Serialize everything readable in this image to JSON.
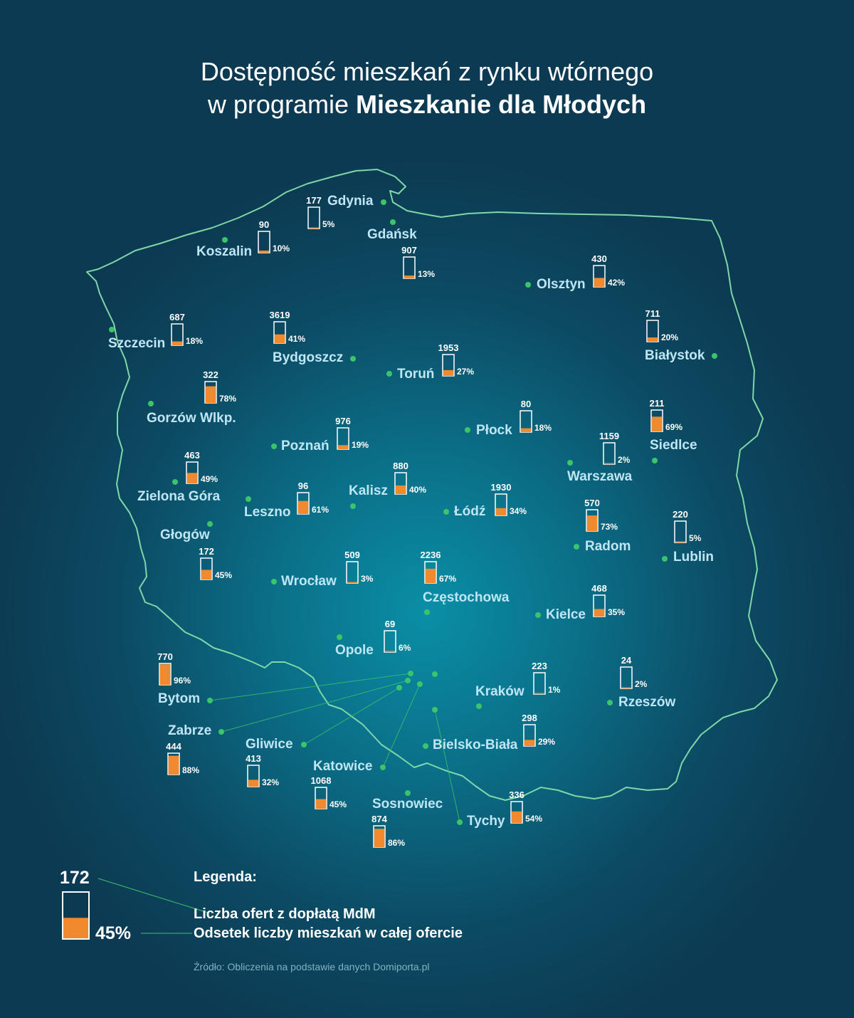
{
  "title": {
    "line1": "Dostępność mieszkań z rynku wtórnego",
    "line2_prefix": "w programie ",
    "line2_bold": "Mieszkanie dla Młodych"
  },
  "colors": {
    "orange": "#f08a2e",
    "dot": "#3cc46a",
    "border": "#7fd7a8",
    "label": "#bfe6f5"
  },
  "cities": [
    {
      "id": "gdynia",
      "name": "Gdynia",
      "count": "177",
      "pct": "5%",
      "share": 0.05
    },
    {
      "id": "gdansk",
      "name": "Gdańsk",
      "count": "907",
      "pct": "13%",
      "share": 0.13
    },
    {
      "id": "koszalin",
      "name": "Koszalin",
      "count": "90",
      "pct": "10%",
      "share": 0.1
    },
    {
      "id": "olsztyn",
      "name": "Olsztyn",
      "count": "430",
      "pct": "42%",
      "share": 0.42
    },
    {
      "id": "szczecin",
      "name": "Szczecin",
      "count": "687",
      "pct": "18%",
      "share": 0.18
    },
    {
      "id": "bydgoszcz",
      "name": "Bydgoszcz",
      "count": "3619",
      "pct": "41%",
      "share": 0.41
    },
    {
      "id": "bialystok",
      "name": "Białystok",
      "count": "711",
      "pct": "20%",
      "share": 0.2
    },
    {
      "id": "torun",
      "name": "Toruń",
      "count": "1953",
      "pct": "27%",
      "share": 0.27
    },
    {
      "id": "gorzow",
      "name": "Gorzów Wlkp.",
      "count": "322",
      "pct": "78%",
      "share": 0.78
    },
    {
      "id": "plock",
      "name": "Płock",
      "count": "80",
      "pct": "18%",
      "share": 0.18
    },
    {
      "id": "siedlce",
      "name": "Siedlce",
      "count": "211",
      "pct": "69%",
      "share": 0.69
    },
    {
      "id": "poznan",
      "name": "Poznań",
      "count": "976",
      "pct": "19%",
      "share": 0.19
    },
    {
      "id": "warszawa",
      "name": "Warszawa",
      "count": "1159",
      "pct": "2%",
      "share": 0.02
    },
    {
      "id": "zielona",
      "name": "Zielona Góra",
      "count": "463",
      "pct": "49%",
      "share": 0.49
    },
    {
      "id": "kalisz",
      "name": "Kalisz",
      "count": "880",
      "pct": "40%",
      "share": 0.4
    },
    {
      "id": "leszno",
      "name": "Leszno",
      "count": "96",
      "pct": "61%",
      "share": 0.61
    },
    {
      "id": "lodz",
      "name": "Łódź",
      "count": "1930",
      "pct": "34%",
      "share": 0.34
    },
    {
      "id": "radom",
      "name": "Radom",
      "count": "570",
      "pct": "73%",
      "share": 0.73
    },
    {
      "id": "lublin",
      "name": "Lublin",
      "count": "220",
      "pct": "5%",
      "share": 0.05
    },
    {
      "id": "glogow",
      "name": "Głogów",
      "count": "172",
      "pct": "45%",
      "share": 0.45
    },
    {
      "id": "wroclaw",
      "name": "Wrocław",
      "count": "509",
      "pct": "3%",
      "share": 0.03
    },
    {
      "id": "czestochowa",
      "name": "Częstochowa",
      "count": "2236",
      "pct": "67%",
      "share": 0.67
    },
    {
      "id": "kielce",
      "name": "Kielce",
      "count": "468",
      "pct": "35%",
      "share": 0.35
    },
    {
      "id": "opole",
      "name": "Opole",
      "count": "69",
      "pct": "6%",
      "share": 0.06
    },
    {
      "id": "bytom",
      "name": "Bytom",
      "count": "770",
      "pct": "96%",
      "share": 0.96
    },
    {
      "id": "krakow",
      "name": "Kraków",
      "count": "223",
      "pct": "1%",
      "share": 0.01
    },
    {
      "id": "rzeszow",
      "name": "Rzeszów",
      "count": "24",
      "pct": "2%",
      "share": 0.02
    },
    {
      "id": "zabrze",
      "name": "Zabrze",
      "count": "444",
      "pct": "88%",
      "share": 0.88
    },
    {
      "id": "gliwice",
      "name": "Gliwice",
      "count": "413",
      "pct": "32%",
      "share": 0.32
    },
    {
      "id": "bielsko",
      "name": "Bielsko-Biała",
      "count": "298",
      "pct": "29%",
      "share": 0.29
    },
    {
      "id": "katowice",
      "name": "Katowice",
      "count": "1068",
      "pct": "45%",
      "share": 0.45
    },
    {
      "id": "sosnowiec",
      "name": "Sosnowiec",
      "count": "874",
      "pct": "86%",
      "share": 0.86
    },
    {
      "id": "tychy",
      "name": "Tychy",
      "count": "336",
      "pct": "54%",
      "share": 0.54
    }
  ],
  "legend": {
    "title": "Legenda:",
    "count_label": "Liczba ofert z dopłatą MdM",
    "pct_label": "Odsetek liczby mieszkań w całej ofercie",
    "example_count": "172",
    "example_pct": "45%",
    "example_share": 0.45
  },
  "source": "Źródło: Obliczenia na podstawie danych Domiporta.pl"
}
